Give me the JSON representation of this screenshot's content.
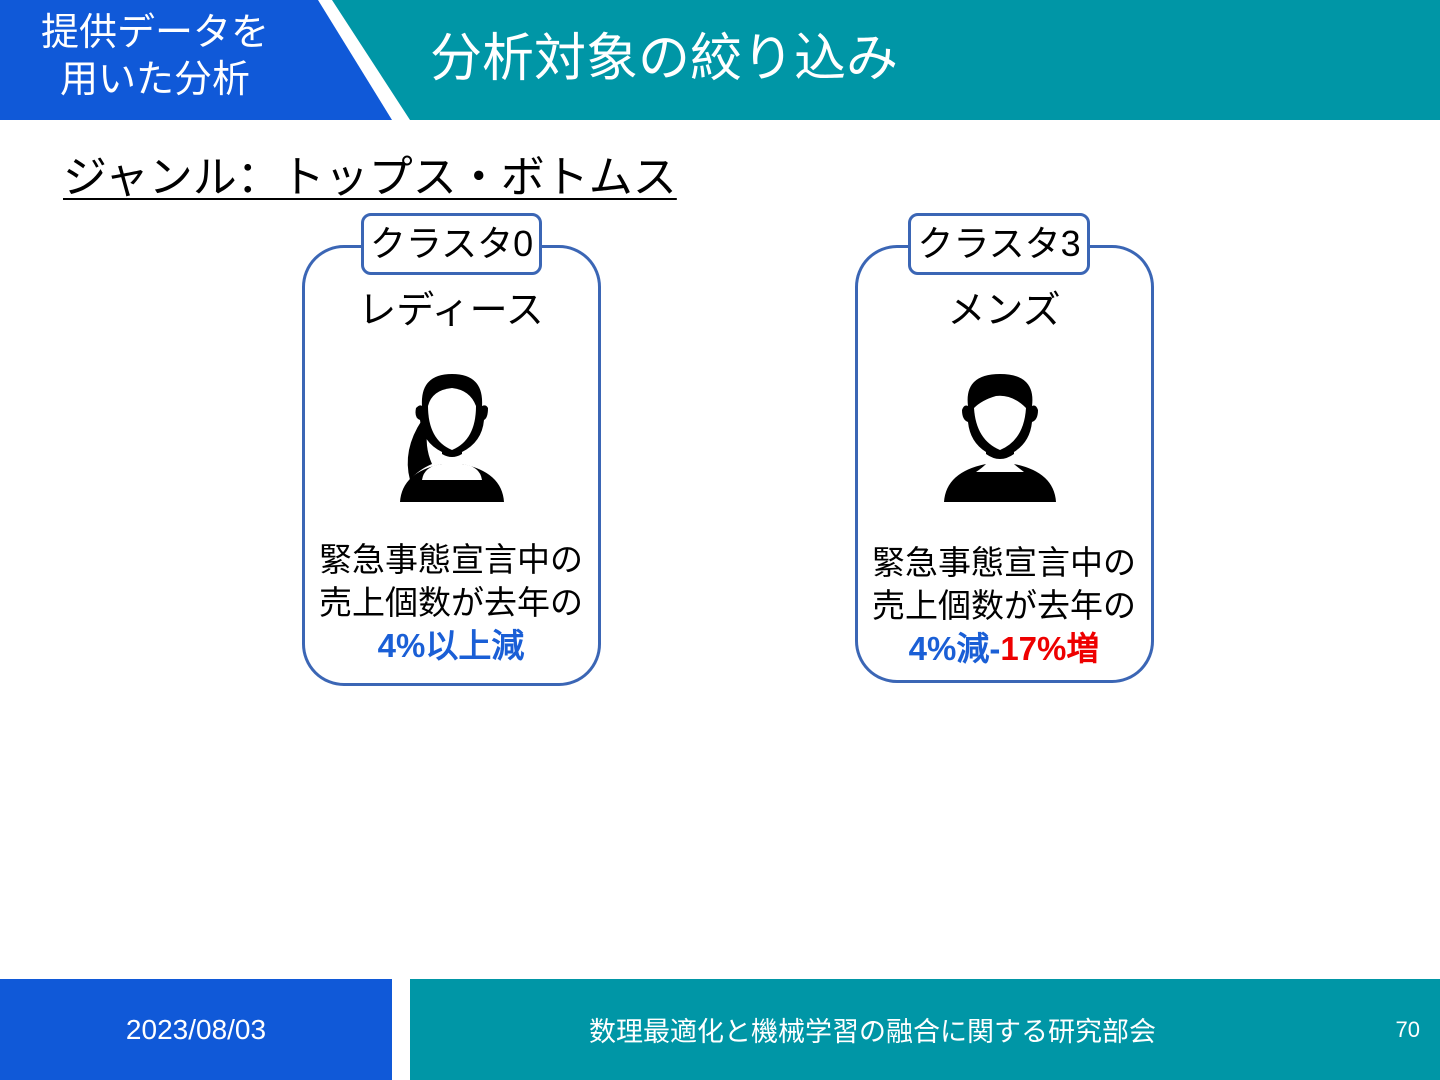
{
  "header": {
    "section_label_line1": "提供データを",
    "section_label_line2": "用いた分析",
    "title": "分析対象の絞り込み",
    "colors": {
      "section_bg": "#1059d8",
      "title_bg": "#0096a6"
    }
  },
  "subtitle": "ジャンル：トップス・ボトムス",
  "cards": [
    {
      "tag": "クラスタ0",
      "name": "レディース",
      "icon": "female-person-icon",
      "line1": "緊急事態宣言中の",
      "line2": "売上個数が去年の",
      "highlight_blue": "4%以上減",
      "highlight_red": ""
    },
    {
      "tag": "クラスタ3",
      "name": "メンズ",
      "icon": "male-person-icon",
      "line1": "緊急事態宣言中の",
      "line2": "売上個数が去年の",
      "highlight_blue": "4%減-",
      "highlight_red": "17%増"
    }
  ],
  "footer": {
    "date": "2023/08/03",
    "organization": "数理最適化と機械学習の融合に関する研究部会",
    "page_number": "70"
  }
}
